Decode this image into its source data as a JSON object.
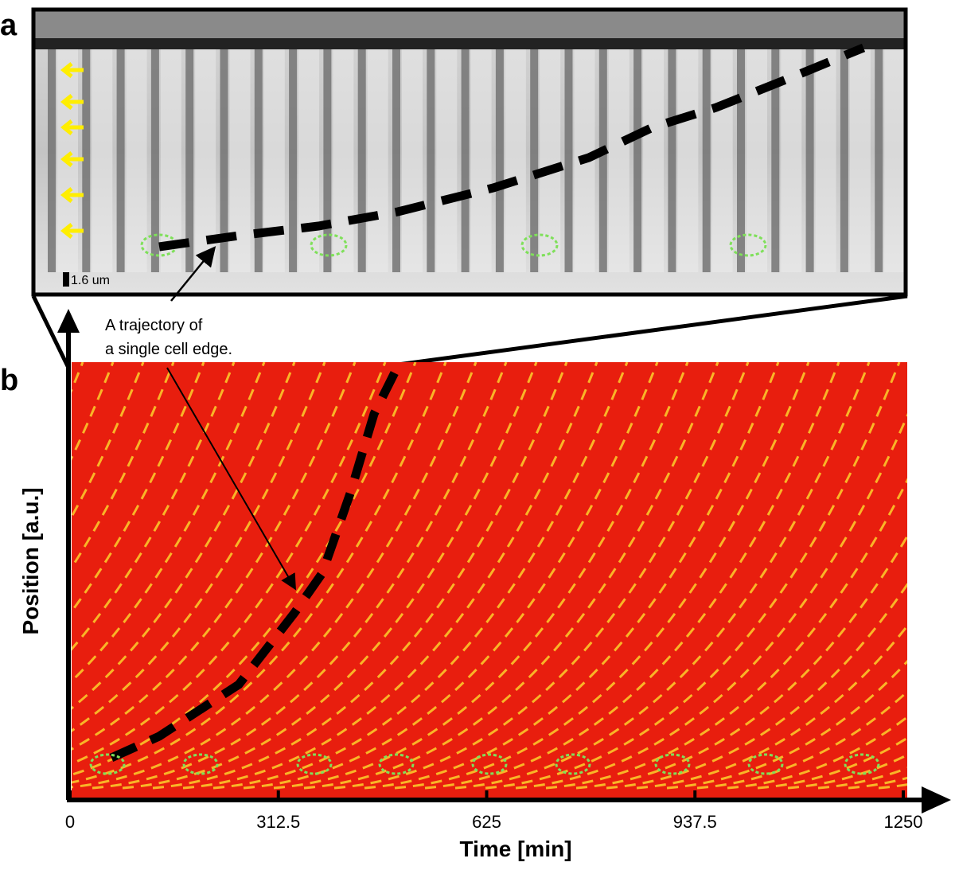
{
  "chart_data": {
    "type": "kymograph",
    "panel_labels": [
      "a",
      "b"
    ],
    "scale_bar_label": "1.6 um",
    "annotation": [
      "A trajectory of",
      "a single cell edge."
    ],
    "x_label": "Time [min]",
    "y_label": "Position [a.u.]",
    "xlim": [
      0,
      1250
    ],
    "xticks": [
      0,
      312.5,
      625,
      937.5,
      1250
    ]
  }
}
